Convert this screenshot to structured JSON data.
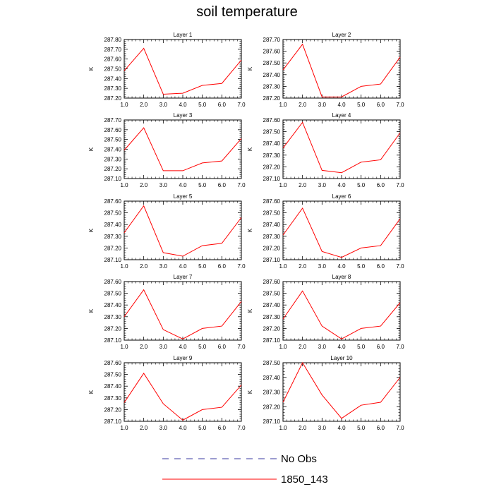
{
  "title": "soil temperature",
  "chart_data": [
    {
      "type": "line",
      "title": "Layer 1",
      "ylabel": "K",
      "x": [
        1,
        2,
        3,
        4,
        5,
        6,
        7
      ],
      "xlim": [
        1,
        7
      ],
      "xticks": [
        "1.0",
        "2.0",
        "3.0",
        "4.0",
        "5.0",
        "6.0",
        "7.0"
      ],
      "ylim": [
        287.2,
        287.8
      ],
      "yticks": [
        "287.20",
        "287.30",
        "287.40",
        "287.50",
        "287.60",
        "287.70",
        "287.80"
      ],
      "series": [
        {
          "name": "1850_143",
          "color": "#ff0000",
          "values": [
            287.48,
            287.71,
            287.24,
            287.25,
            287.33,
            287.35,
            287.59
          ]
        }
      ]
    },
    {
      "type": "line",
      "title": "Layer 2",
      "ylabel": "K",
      "x": [
        1,
        2,
        3,
        4,
        5,
        6,
        7
      ],
      "xlim": [
        1,
        7
      ],
      "xticks": [
        "1.0",
        "2.0",
        "3.0",
        "4.0",
        "5.0",
        "6.0",
        "7.0"
      ],
      "ylim": [
        287.2,
        287.7
      ],
      "yticks": [
        "287.20",
        "287.30",
        "287.40",
        "287.50",
        "287.60",
        "287.70"
      ],
      "series": [
        {
          "name": "1850_143",
          "color": "#ff0000",
          "values": [
            287.44,
            287.66,
            287.21,
            287.21,
            287.3,
            287.32,
            287.55
          ]
        }
      ]
    },
    {
      "type": "line",
      "title": "Layer 3",
      "ylabel": "K",
      "x": [
        1,
        2,
        3,
        4,
        5,
        6,
        7
      ],
      "xlim": [
        1,
        7
      ],
      "xticks": [
        "1.0",
        "2.0",
        "3.0",
        "4.0",
        "5.0",
        "6.0",
        "7.0"
      ],
      "ylim": [
        287.1,
        287.7
      ],
      "yticks": [
        "287.10",
        "287.20",
        "287.30",
        "287.40",
        "287.50",
        "287.60",
        "287.70"
      ],
      "series": [
        {
          "name": "1850_143",
          "color": "#ff0000",
          "values": [
            287.39,
            287.62,
            287.18,
            287.18,
            287.26,
            287.28,
            287.51
          ]
        }
      ]
    },
    {
      "type": "line",
      "title": "Layer 4",
      "ylabel": "K",
      "x": [
        1,
        2,
        3,
        4,
        5,
        6,
        7
      ],
      "xlim": [
        1,
        7
      ],
      "xticks": [
        "1.0",
        "2.0",
        "3.0",
        "4.0",
        "5.0",
        "6.0",
        "7.0"
      ],
      "ylim": [
        287.1,
        287.6
      ],
      "yticks": [
        "287.10",
        "287.20",
        "287.30",
        "287.40",
        "287.50",
        "287.60"
      ],
      "series": [
        {
          "name": "1850_143",
          "color": "#ff0000",
          "values": [
            287.36,
            287.58,
            287.17,
            287.15,
            287.24,
            287.26,
            287.49
          ]
        }
      ]
    },
    {
      "type": "line",
      "title": "Layer 5",
      "ylabel": "K",
      "x": [
        1,
        2,
        3,
        4,
        5,
        6,
        7
      ],
      "xlim": [
        1,
        7
      ],
      "xticks": [
        "1.0",
        "2.0",
        "3.0",
        "4.0",
        "5.0",
        "6.0",
        "7.0"
      ],
      "ylim": [
        287.1,
        287.6
      ],
      "yticks": [
        "287.10",
        "287.20",
        "287.30",
        "287.40",
        "287.50",
        "287.60"
      ],
      "series": [
        {
          "name": "1850_143",
          "color": "#ff0000",
          "values": [
            287.33,
            287.56,
            287.16,
            287.13,
            287.22,
            287.24,
            287.46
          ]
        }
      ]
    },
    {
      "type": "line",
      "title": "Layer 6",
      "ylabel": "K",
      "x": [
        1,
        2,
        3,
        4,
        5,
        6,
        7
      ],
      "xlim": [
        1,
        7
      ],
      "xticks": [
        "1.0",
        "2.0",
        "3.0",
        "4.0",
        "5.0",
        "6.0",
        "7.0"
      ],
      "ylim": [
        287.1,
        287.6
      ],
      "yticks": [
        "287.10",
        "287.20",
        "287.30",
        "287.40",
        "287.50",
        "287.60"
      ],
      "series": [
        {
          "name": "1850_143",
          "color": "#ff0000",
          "values": [
            287.31,
            287.54,
            287.17,
            287.12,
            287.2,
            287.22,
            287.45
          ]
        }
      ]
    },
    {
      "type": "line",
      "title": "Layer 7",
      "ylabel": "K",
      "x": [
        1,
        2,
        3,
        4,
        5,
        6,
        7
      ],
      "xlim": [
        1,
        7
      ],
      "xticks": [
        "1.0",
        "2.0",
        "3.0",
        "4.0",
        "5.0",
        "6.0",
        "7.0"
      ],
      "ylim": [
        287.1,
        287.6
      ],
      "yticks": [
        "287.10",
        "287.20",
        "287.30",
        "287.40",
        "287.50",
        "287.60"
      ],
      "series": [
        {
          "name": "1850_143",
          "color": "#ff0000",
          "values": [
            287.3,
            287.53,
            287.19,
            287.11,
            287.2,
            287.22,
            287.43
          ]
        }
      ]
    },
    {
      "type": "line",
      "title": "Layer 8",
      "ylabel": "K",
      "x": [
        1,
        2,
        3,
        4,
        5,
        6,
        7
      ],
      "xlim": [
        1,
        7
      ],
      "xticks": [
        "1.0",
        "2.0",
        "3.0",
        "4.0",
        "5.0",
        "6.0",
        "7.0"
      ],
      "ylim": [
        287.1,
        287.6
      ],
      "yticks": [
        "287.10",
        "287.20",
        "287.30",
        "287.40",
        "287.50",
        "287.60"
      ],
      "series": [
        {
          "name": "1850_143",
          "color": "#ff0000",
          "values": [
            287.28,
            287.52,
            287.22,
            287.11,
            287.2,
            287.22,
            287.42
          ]
        }
      ]
    },
    {
      "type": "line",
      "title": "Layer 9",
      "ylabel": "K",
      "x": [
        1,
        2,
        3,
        4,
        5,
        6,
        7
      ],
      "xlim": [
        1,
        7
      ],
      "xticks": [
        "1.0",
        "2.0",
        "3.0",
        "4.0",
        "5.0",
        "6.0",
        "7.0"
      ],
      "ylim": [
        287.1,
        287.6
      ],
      "yticks": [
        "287.10",
        "287.20",
        "287.30",
        "287.40",
        "287.50",
        "287.60"
      ],
      "series": [
        {
          "name": "1850_143",
          "color": "#ff0000",
          "values": [
            287.26,
            287.51,
            287.25,
            287.11,
            287.2,
            287.22,
            287.41
          ]
        }
      ]
    },
    {
      "type": "line",
      "title": "Layer 10",
      "ylabel": "K",
      "x": [
        1,
        2,
        3,
        4,
        5,
        6,
        7
      ],
      "xlim": [
        1,
        7
      ],
      "xticks": [
        "1.0",
        "2.0",
        "3.0",
        "4.0",
        "5.0",
        "6.0",
        "7.0"
      ],
      "ylim": [
        287.1,
        287.5
      ],
      "yticks": [
        "287.10",
        "287.20",
        "287.30",
        "287.40",
        "287.50"
      ],
      "series": [
        {
          "name": "1850_143",
          "color": "#ff0000",
          "values": [
            287.23,
            287.5,
            287.28,
            287.12,
            287.21,
            287.23,
            287.4
          ]
        }
      ]
    }
  ],
  "legend": [
    {
      "label": "No Obs",
      "color": "#3a3aa0",
      "dashed": true
    },
    {
      "label": "1850_143",
      "color": "#ff0000",
      "dashed": false
    }
  ]
}
